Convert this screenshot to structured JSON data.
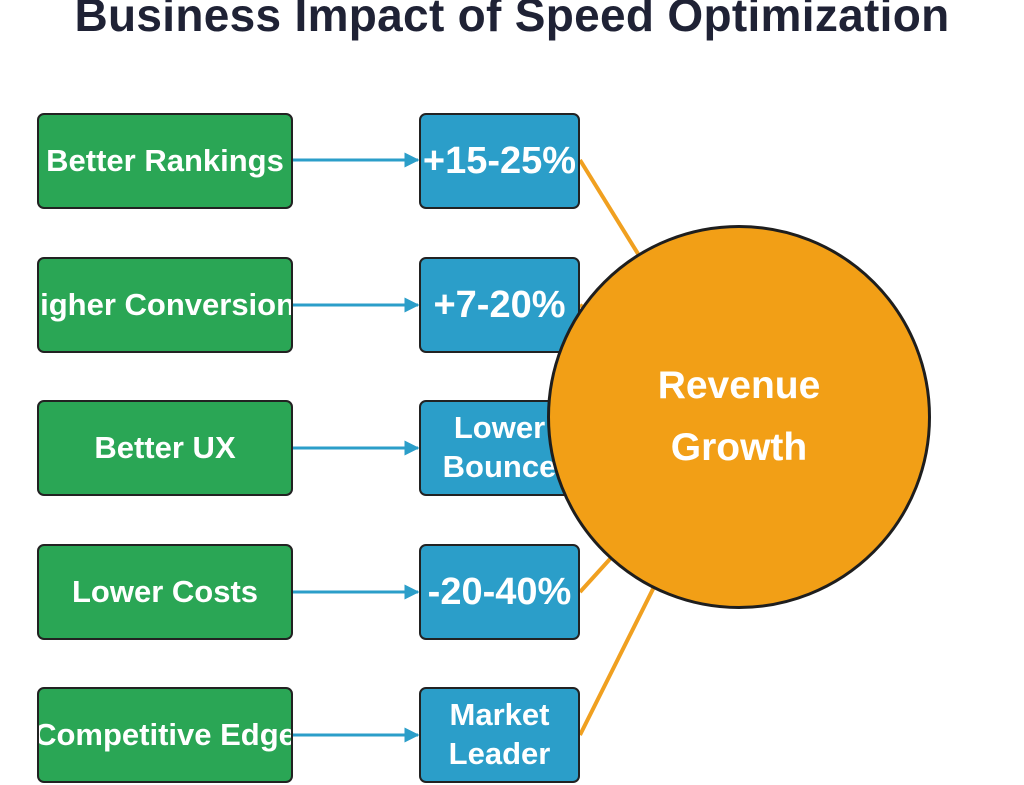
{
  "title": "Business Impact of Speed Optimization",
  "benefits": [
    {
      "label": "Better Rankings",
      "impact": "+15-25%"
    },
    {
      "label": "Higher Conversions",
      "impact": "+7-20%"
    },
    {
      "label": "Better UX",
      "impact": "Lower Bounce"
    },
    {
      "label": "Lower Costs",
      "impact": "-20-40%"
    },
    {
      "label": "Competitive Edge",
      "impact": "Market Leader"
    }
  ],
  "outcome": "Revenue Growth",
  "colors": {
    "benefit_box": "#2aa655",
    "impact_box": "#2b9ec9",
    "outcome_circle": "#f29f16",
    "orange_link": "#f0a020",
    "blue_arrow": "#2b9ec9",
    "title": "#1f2235"
  }
}
